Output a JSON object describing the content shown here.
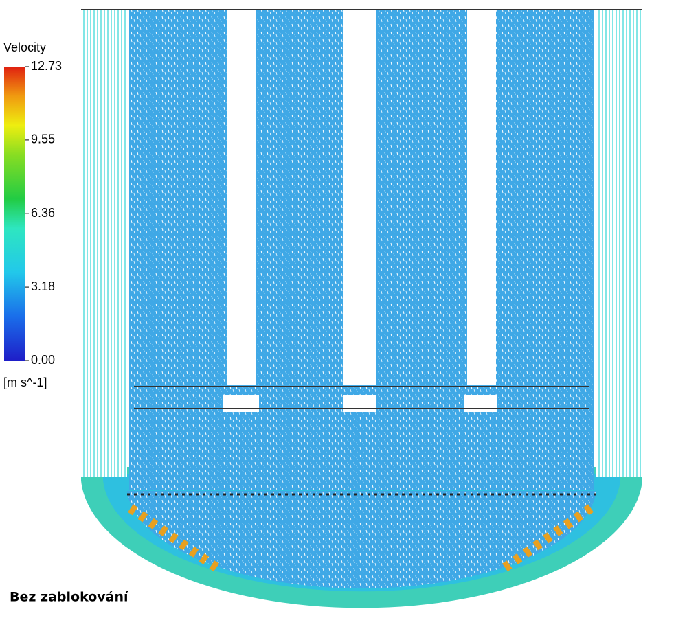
{
  "colorbar": {
    "title": "Velocity",
    "unit": "[m s^-1]",
    "range": [
      0,
      12.73
    ],
    "ticks": [
      {
        "value": 12.73,
        "label": "12.73"
      },
      {
        "value": 9.55,
        "label": "9.55"
      },
      {
        "value": 6.36,
        "label": "6.36"
      },
      {
        "value": 3.18,
        "label": "3.18"
      },
      {
        "value": 0,
        "label": "0.00"
      }
    ]
  },
  "caption": "Bez zablokování"
}
